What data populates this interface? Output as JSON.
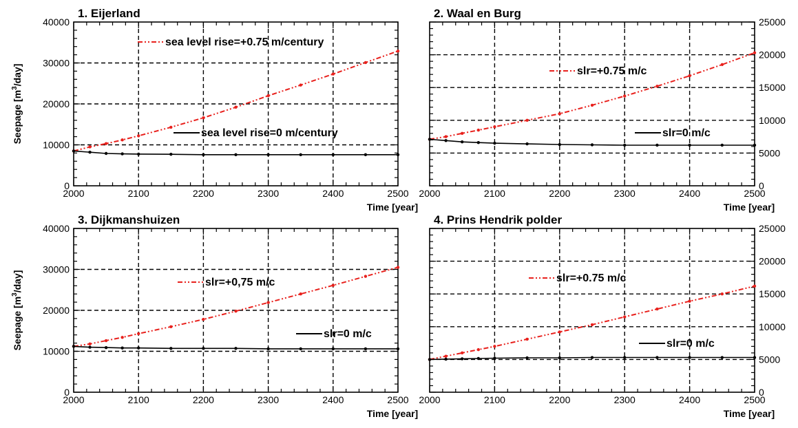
{
  "chart_data": [
    {
      "type": "line",
      "title": "1. Eijerland",
      "xlabel": "Time [year]",
      "ylabel": "Seepage [m3/day]",
      "xlim": [
        2000,
        2500
      ],
      "ylim": [
        0,
        40000
      ],
      "xticks": [
        2000,
        2100,
        2200,
        2300,
        2400,
        2500
      ],
      "yticks": [
        0,
        10000,
        20000,
        30000,
        40000
      ],
      "y_axis_side": "left",
      "grid": true,
      "series": [
        {
          "name": "sea level rise=+0.75 m/century",
          "color": "#e8201c",
          "style": "dash-dot",
          "x": [
            2000,
            2025,
            2050,
            2075,
            2100,
            2150,
            2200,
            2250,
            2300,
            2350,
            2400,
            2450,
            2500
          ],
          "y": [
            8500,
            9500,
            10300,
            11200,
            12200,
            14300,
            16600,
            19200,
            22000,
            24600,
            27300,
            30100,
            32900
          ]
        },
        {
          "name": "sea level rise=0 m/century",
          "color": "#000000",
          "style": "solid",
          "x": [
            2000,
            2025,
            2050,
            2075,
            2100,
            2150,
            2200,
            2250,
            2300,
            2350,
            2400,
            2450,
            2500
          ],
          "y": [
            8500,
            8200,
            7900,
            7800,
            7750,
            7700,
            7600,
            7600,
            7600,
            7600,
            7600,
            7600,
            7600
          ]
        }
      ]
    },
    {
      "type": "line",
      "title": "2. Waal en Burg",
      "xlabel": "Time [year]",
      "ylabel": "",
      "xlim": [
        2000,
        2500
      ],
      "ylim": [
        0,
        25000
      ],
      "xticks": [
        2000,
        2100,
        2200,
        2300,
        2400,
        2500
      ],
      "yticks": [
        0,
        5000,
        10000,
        15000,
        20000,
        25000
      ],
      "y_axis_side": "right",
      "grid": true,
      "series": [
        {
          "name": "slr=+0.75 m/c",
          "color": "#e8201c",
          "style": "dash-dot",
          "x": [
            2000,
            2025,
            2050,
            2075,
            2100,
            2150,
            2200,
            2250,
            2300,
            2350,
            2400,
            2450,
            2500
          ],
          "y": [
            7100,
            7500,
            8000,
            8500,
            9000,
            10000,
            11000,
            12300,
            13700,
            15200,
            16800,
            18500,
            20300
          ]
        },
        {
          "name": "slr=0 m/c",
          "color": "#000000",
          "style": "solid",
          "x": [
            2000,
            2025,
            2050,
            2075,
            2100,
            2150,
            2200,
            2250,
            2300,
            2350,
            2400,
            2450,
            2500
          ],
          "y": [
            7100,
            6900,
            6700,
            6600,
            6500,
            6400,
            6300,
            6250,
            6200,
            6200,
            6200,
            6200,
            6200
          ]
        }
      ]
    },
    {
      "type": "line",
      "title": "3. Dijkmanshuizen",
      "xlabel": "Time [year]",
      "ylabel": "Seepage [m3/day]",
      "xlim": [
        2000,
        2500
      ],
      "ylim": [
        0,
        40000
      ],
      "xticks": [
        2000,
        2100,
        2200,
        2300,
        2400,
        2500
      ],
      "yticks": [
        0,
        10000,
        20000,
        30000,
        40000
      ],
      "y_axis_side": "left",
      "grid": true,
      "series": [
        {
          "name": "slr=+0,75 m/c",
          "color": "#e8201c",
          "style": "dash-dot",
          "x": [
            2000,
            2025,
            2050,
            2075,
            2100,
            2150,
            2200,
            2250,
            2300,
            2350,
            2400,
            2450,
            2500
          ],
          "y": [
            11200,
            11800,
            12600,
            13400,
            14300,
            16000,
            17800,
            19800,
            21900,
            24000,
            26100,
            28300,
            30500
          ]
        },
        {
          "name": "slr=0 m/c",
          "color": "#000000",
          "style": "solid",
          "x": [
            2000,
            2025,
            2050,
            2075,
            2100,
            2150,
            2200,
            2250,
            2300,
            2350,
            2400,
            2450,
            2500
          ],
          "y": [
            11200,
            11000,
            10900,
            10800,
            10800,
            10700,
            10700,
            10700,
            10600,
            10600,
            10600,
            10600,
            10600
          ]
        }
      ]
    },
    {
      "type": "line",
      "title": "4. Prins Hendrik polder",
      "xlabel": "Time [year]",
      "ylabel": "",
      "xlim": [
        2000,
        2500
      ],
      "ylim": [
        0,
        25000
      ],
      "xticks": [
        2000,
        2100,
        2200,
        2300,
        2400,
        2500
      ],
      "yticks": [
        0,
        5000,
        10000,
        15000,
        20000,
        25000
      ],
      "y_axis_side": "right",
      "grid": true,
      "series": [
        {
          "name": "slr=+0.75 m/c",
          "color": "#e8201c",
          "style": "dash-dot",
          "x": [
            2000,
            2025,
            2050,
            2075,
            2100,
            2150,
            2200,
            2250,
            2300,
            2350,
            2400,
            2450,
            2500
          ],
          "y": [
            5000,
            5500,
            6000,
            6500,
            7000,
            8100,
            9200,
            10300,
            11500,
            12700,
            13900,
            15000,
            16200
          ]
        },
        {
          "name": "slr=0 m/c",
          "color": "#000000",
          "style": "solid",
          "x": [
            2000,
            2025,
            2050,
            2075,
            2100,
            2150,
            2200,
            2250,
            2300,
            2350,
            2400,
            2450,
            2500
          ],
          "y": [
            5000,
            5050,
            5100,
            5150,
            5200,
            5250,
            5250,
            5300,
            5300,
            5300,
            5300,
            5300,
            5300
          ]
        }
      ]
    }
  ]
}
